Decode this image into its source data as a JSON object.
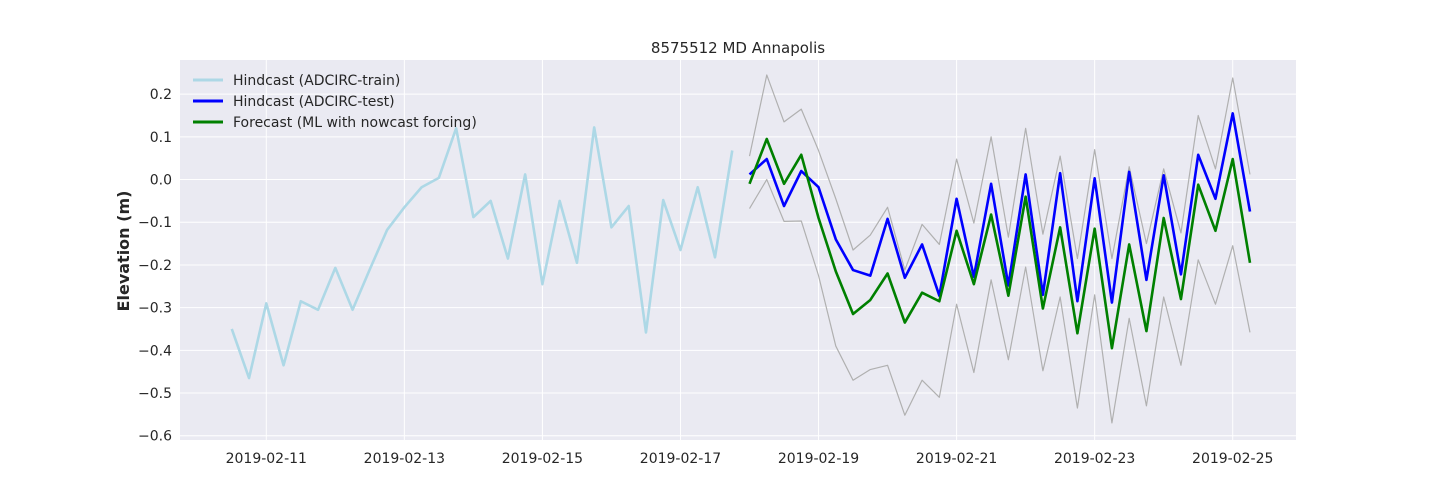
{
  "chart_data": {
    "type": "line",
    "title": "8575512 MD Annapolis",
    "xlabel": "",
    "ylabel": "Elevation (m)",
    "x_axis": {
      "type": "date",
      "range": [
        "2019-02-09T18:00",
        "2019-02-25T22:00"
      ],
      "ticks": [
        "2019-02-11",
        "2019-02-13",
        "2019-02-15",
        "2019-02-17",
        "2019-02-19",
        "2019-02-21",
        "2019-02-23",
        "2019-02-25"
      ]
    },
    "y_axis": {
      "range": [
        -0.61,
        0.28
      ],
      "ticks": [
        0.2,
        0.1,
        0.0,
        -0.1,
        -0.2,
        -0.3,
        -0.4,
        -0.5,
        -0.6
      ],
      "tick_labels": [
        "0.2",
        "0.1",
        "0.0",
        "−0.1",
        "−0.2",
        "−0.3",
        "−0.4",
        "−0.5",
        "−0.6"
      ]
    },
    "grid": true,
    "background": "#eaeaf2",
    "legend_position": "top-left",
    "series": [
      {
        "name": "Hindcast (ADCIRC-train)",
        "color": "#add8e6",
        "x": [
          "2019-02-10T12:00",
          "2019-02-10T18:00",
          "2019-02-11T00:00",
          "2019-02-11T06:00",
          "2019-02-11T12:00",
          "2019-02-11T18:00",
          "2019-02-12T00:00",
          "2019-02-12T06:00",
          "2019-02-12T12:00",
          "2019-02-12T18:00",
          "2019-02-13T00:00",
          "2019-02-13T06:00",
          "2019-02-13T12:00",
          "2019-02-13T18:00",
          "2019-02-14T00:00",
          "2019-02-14T06:00",
          "2019-02-14T12:00",
          "2019-02-14T18:00",
          "2019-02-15T00:00",
          "2019-02-15T06:00",
          "2019-02-15T12:00",
          "2019-02-15T18:00",
          "2019-02-16T00:00",
          "2019-02-16T06:00",
          "2019-02-16T12:00",
          "2019-02-16T18:00",
          "2019-02-17T00:00",
          "2019-02-17T06:00",
          "2019-02-17T12:00",
          "2019-02-17T18:00"
        ],
        "values": [
          -0.35,
          -0.465,
          -0.29,
          -0.435,
          -0.285,
          -0.305,
          -0.207,
          -0.305,
          -0.21,
          -0.118,
          -0.065,
          -0.018,
          0.004,
          0.12,
          -0.088,
          -0.05,
          -0.185,
          0.012,
          -0.245,
          -0.05,
          -0.195,
          0.122,
          -0.112,
          -0.062,
          -0.358,
          -0.048,
          -0.165,
          -0.018,
          -0.182,
          0.068
        ]
      },
      {
        "name": "Hindcast (ADCIRC-test)",
        "color": "#0000ff",
        "x": [
          "2019-02-18T00:00",
          "2019-02-18T06:00",
          "2019-02-18T12:00",
          "2019-02-18T18:00",
          "2019-02-19T00:00",
          "2019-02-19T06:00",
          "2019-02-19T12:00",
          "2019-02-19T18:00",
          "2019-02-20T00:00",
          "2019-02-20T06:00",
          "2019-02-20T12:00",
          "2019-02-20T18:00",
          "2019-02-21T00:00",
          "2019-02-21T06:00",
          "2019-02-21T12:00",
          "2019-02-21T18:00",
          "2019-02-22T00:00",
          "2019-02-22T06:00",
          "2019-02-22T12:00",
          "2019-02-22T18:00",
          "2019-02-23T00:00",
          "2019-02-23T06:00",
          "2019-02-23T12:00",
          "2019-02-23T18:00",
          "2019-02-24T00:00",
          "2019-02-24T06:00",
          "2019-02-24T12:00",
          "2019-02-24T18:00",
          "2019-02-25T00:00",
          "2019-02-25T06:00"
        ],
        "values": [
          0.012,
          0.048,
          -0.062,
          0.02,
          -0.018,
          -0.14,
          -0.212,
          -0.225,
          -0.092,
          -0.23,
          -0.152,
          -0.272,
          -0.045,
          -0.228,
          -0.01,
          -0.248,
          0.012,
          -0.27,
          0.015,
          -0.285,
          0.003,
          -0.288,
          0.018,
          -0.235,
          0.01,
          -0.222,
          0.058,
          -0.045,
          0.155,
          -0.075
        ]
      },
      {
        "name": "Forecast (ML with nowcast forcing)",
        "color": "#008000",
        "x": [
          "2019-02-18T00:00",
          "2019-02-18T06:00",
          "2019-02-18T12:00",
          "2019-02-18T18:00",
          "2019-02-19T00:00",
          "2019-02-19T06:00",
          "2019-02-19T12:00",
          "2019-02-19T18:00",
          "2019-02-20T00:00",
          "2019-02-20T06:00",
          "2019-02-20T12:00",
          "2019-02-20T18:00",
          "2019-02-21T00:00",
          "2019-02-21T06:00",
          "2019-02-21T12:00",
          "2019-02-21T18:00",
          "2019-02-22T00:00",
          "2019-02-22T06:00",
          "2019-02-22T12:00",
          "2019-02-22T18:00",
          "2019-02-23T00:00",
          "2019-02-23T06:00",
          "2019-02-23T12:00",
          "2019-02-23T18:00",
          "2019-02-24T00:00",
          "2019-02-24T06:00",
          "2019-02-24T12:00",
          "2019-02-24T18:00",
          "2019-02-25T00:00",
          "2019-02-25T06:00"
        ],
        "values": [
          -0.01,
          0.095,
          -0.01,
          0.058,
          -0.09,
          -0.215,
          -0.315,
          -0.282,
          -0.22,
          -0.335,
          -0.265,
          -0.285,
          -0.12,
          -0.245,
          -0.082,
          -0.272,
          -0.04,
          -0.302,
          -0.112,
          -0.36,
          -0.115,
          -0.395,
          -0.152,
          -0.355,
          -0.09,
          -0.28,
          -0.012,
          -0.12,
          0.048,
          -0.195
        ]
      },
      {
        "name": "",
        "color": "#b0b0b0",
        "x": [
          "2019-02-18T00:00",
          "2019-02-18T06:00",
          "2019-02-18T12:00",
          "2019-02-18T18:00",
          "2019-02-19T00:00",
          "2019-02-19T06:00",
          "2019-02-19T12:00",
          "2019-02-19T18:00",
          "2019-02-20T00:00",
          "2019-02-20T06:00",
          "2019-02-20T12:00",
          "2019-02-20T18:00",
          "2019-02-21T00:00",
          "2019-02-21T06:00",
          "2019-02-21T12:00",
          "2019-02-21T18:00",
          "2019-02-22T00:00",
          "2019-02-22T06:00",
          "2019-02-22T12:00",
          "2019-02-22T18:00",
          "2019-02-23T00:00",
          "2019-02-23T06:00",
          "2019-02-23T12:00",
          "2019-02-23T18:00",
          "2019-02-24T00:00",
          "2019-02-24T06:00",
          "2019-02-24T12:00",
          "2019-02-24T18:00",
          "2019-02-25T00:00",
          "2019-02-25T06:00"
        ],
        "values": [
          0.055,
          0.245,
          0.135,
          0.165,
          0.068,
          -0.045,
          -0.165,
          -0.13,
          -0.065,
          -0.212,
          -0.105,
          -0.152,
          0.048,
          -0.102,
          0.1,
          -0.135,
          0.12,
          -0.128,
          0.055,
          -0.185,
          0.07,
          -0.185,
          0.03,
          -0.15,
          0.025,
          -0.125,
          0.15,
          0.025,
          0.238,
          0.012
        ]
      },
      {
        "name": "",
        "color": "#b0b0b0",
        "x": [
          "2019-02-18T00:00",
          "2019-02-18T06:00",
          "2019-02-18T12:00",
          "2019-02-18T18:00",
          "2019-02-19T00:00",
          "2019-02-19T06:00",
          "2019-02-19T12:00",
          "2019-02-19T18:00",
          "2019-02-20T00:00",
          "2019-02-20T06:00",
          "2019-02-20T12:00",
          "2019-02-20T18:00",
          "2019-02-21T00:00",
          "2019-02-21T06:00",
          "2019-02-21T12:00",
          "2019-02-21T18:00",
          "2019-02-22T00:00",
          "2019-02-22T06:00",
          "2019-02-22T12:00",
          "2019-02-22T18:00",
          "2019-02-23T00:00",
          "2019-02-23T06:00",
          "2019-02-23T12:00",
          "2019-02-23T18:00",
          "2019-02-24T00:00",
          "2019-02-24T06:00",
          "2019-02-24T12:00",
          "2019-02-24T18:00",
          "2019-02-25T00:00",
          "2019-02-25T06:00"
        ],
        "values": [
          -0.068,
          0.0,
          -0.098,
          -0.097,
          -0.225,
          -0.39,
          -0.47,
          -0.445,
          -0.435,
          -0.552,
          -0.47,
          -0.51,
          -0.292,
          -0.452,
          -0.235,
          -0.422,
          -0.205,
          -0.448,
          -0.275,
          -0.535,
          -0.27,
          -0.57,
          -0.325,
          -0.53,
          -0.275,
          -0.435,
          -0.188,
          -0.292,
          -0.155,
          -0.358
        ]
      }
    ]
  }
}
